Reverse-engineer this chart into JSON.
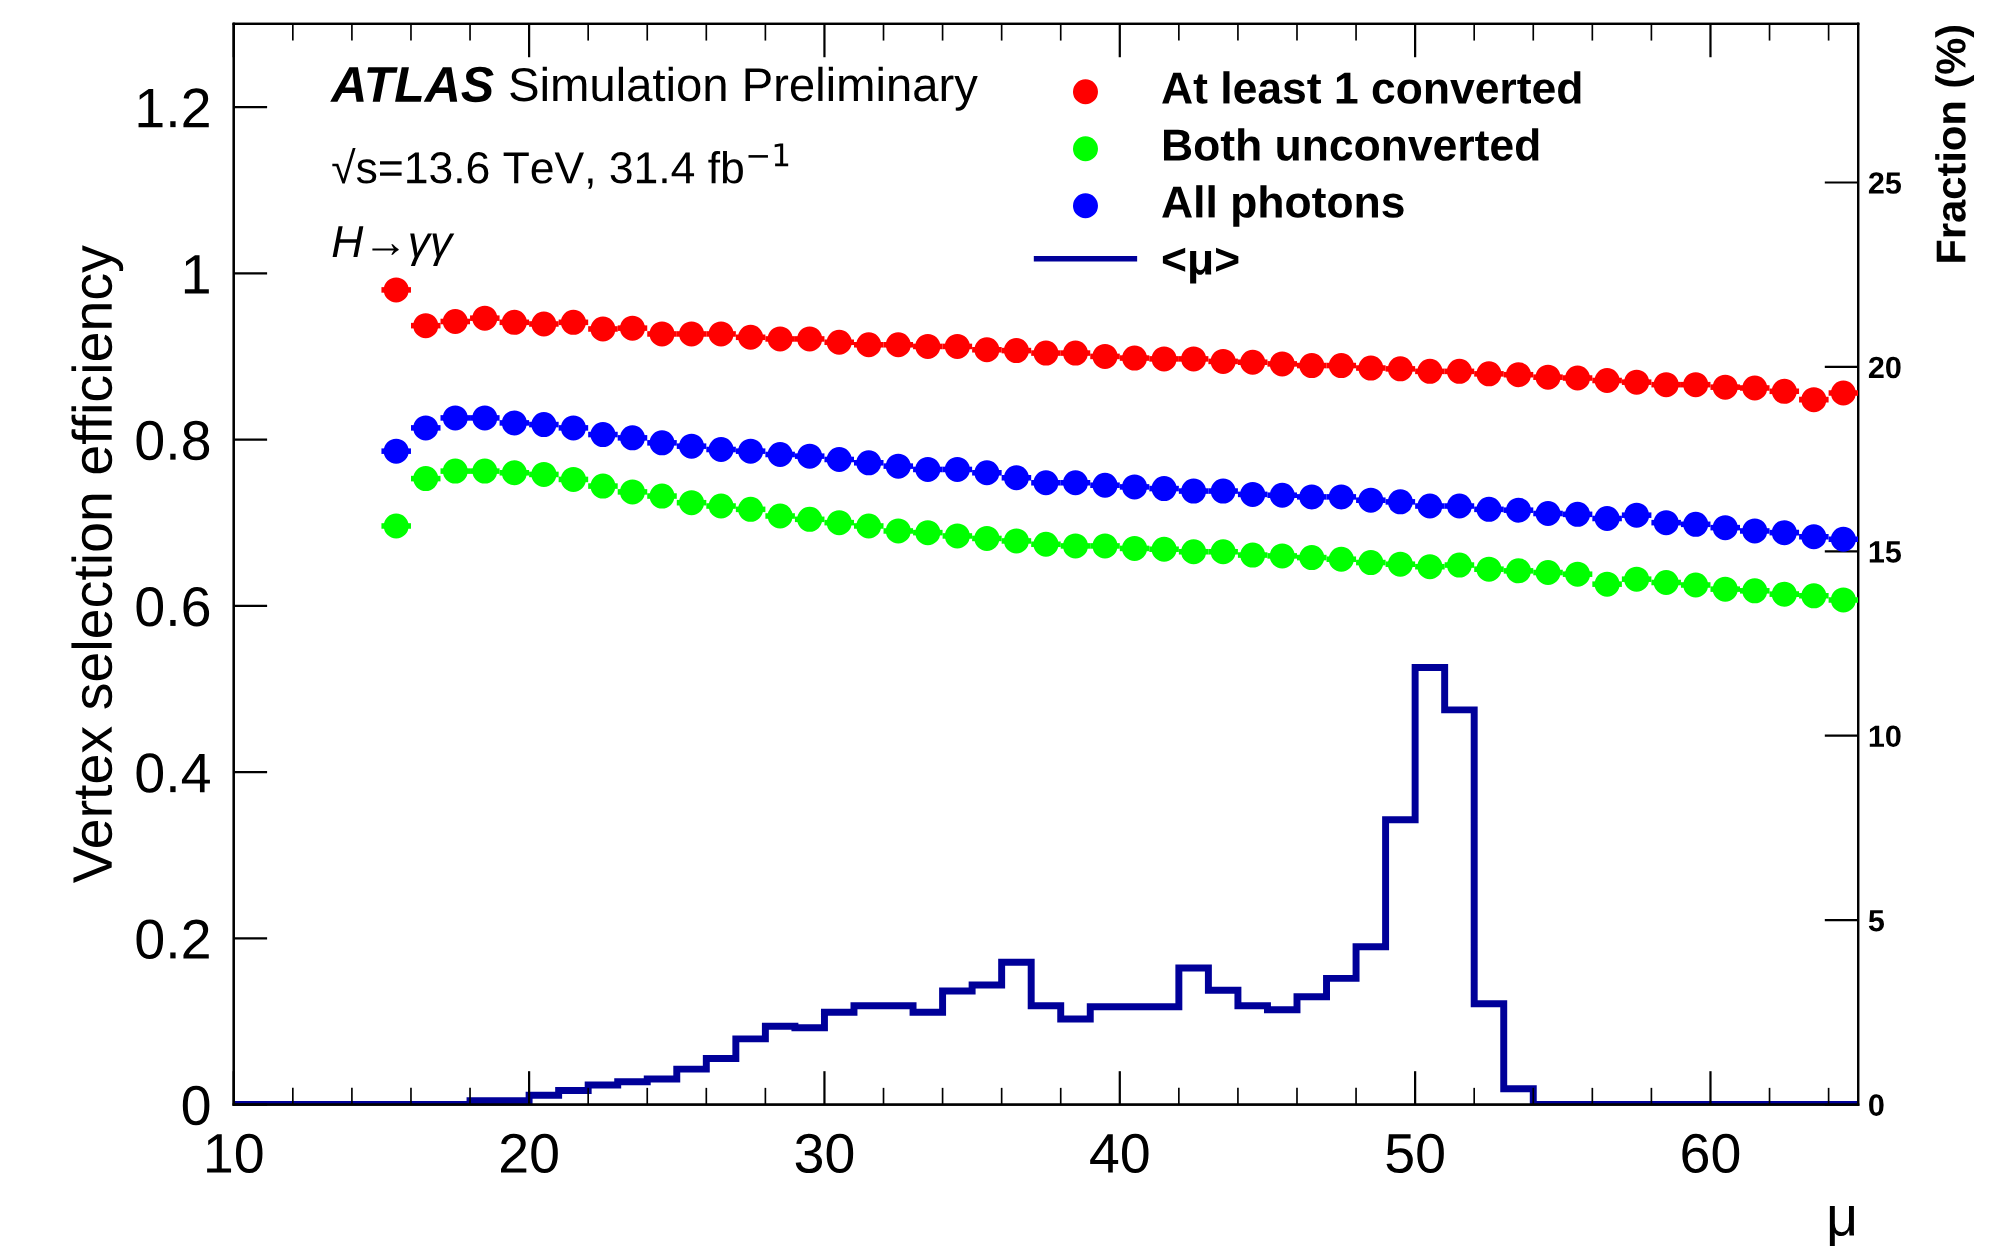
{
  "chart_data": {
    "type": "scatter",
    "xlabel": "μ",
    "ylabel": "Vertex selection efficiency",
    "y2label": "Fraction (%)",
    "annotations": [
      "ATLAS Simulation Preliminary",
      "√s=13.6 TeV, 31.4 fb$^{−1}$",
      "H→γγ"
    ],
    "xlim": [
      10,
      65
    ],
    "xticks": [
      10,
      20,
      30,
      40,
      50,
      60
    ],
    "ylim": [
      0,
      1.3
    ],
    "yticks": [
      0,
      0.2,
      0.4,
      0.6,
      0.8,
      1,
      1.2
    ],
    "y2lim": [
      0,
      29.3
    ],
    "y2ticks": [
      0,
      5,
      10,
      15,
      20,
      25
    ],
    "x": [
      15.5,
      16.5,
      17.5,
      18.5,
      19.5,
      20.5,
      21.5,
      22.5,
      23.5,
      24.5,
      25.5,
      26.5,
      27.5,
      28.5,
      29.5,
      30.5,
      31.5,
      32.5,
      33.5,
      34.5,
      35.5,
      36.5,
      37.5,
      38.5,
      39.5,
      40.5,
      41.5,
      42.5,
      43.5,
      44.5,
      45.5,
      46.5,
      47.5,
      48.5,
      49.5,
      50.5,
      51.5,
      52.5,
      53.5,
      54.5,
      55.5,
      56.5,
      57.5,
      58.5,
      59.5,
      60.5,
      61.5,
      62.5,
      63.5,
      64.5
    ],
    "marker": "circle",
    "legend": "top right",
    "grid": false,
    "series": [
      {
        "name": "At least 1 converted",
        "color": "#ff0000",
        "values": [
          0.98,
          0.937,
          0.942,
          0.946,
          0.941,
          0.939,
          0.941,
          0.933,
          0.934,
          0.927,
          0.927,
          0.927,
          0.923,
          0.921,
          0.921,
          0.917,
          0.914,
          0.914,
          0.912,
          0.912,
          0.908,
          0.907,
          0.904,
          0.904,
          0.9,
          0.898,
          0.897,
          0.897,
          0.894,
          0.893,
          0.891,
          0.889,
          0.889,
          0.886,
          0.885,
          0.882,
          0.882,
          0.879,
          0.878,
          0.875,
          0.874,
          0.871,
          0.869,
          0.866,
          0.866,
          0.863,
          0.862,
          0.858,
          0.848,
          0.856
        ],
        "xerrors": [
          0.5,
          0.5,
          0.5,
          0.5,
          0.5,
          0.5,
          0.5,
          0.5,
          0.5,
          0.5,
          0.5,
          0.5,
          0.5,
          0.5,
          0.5,
          0.5,
          0.5,
          0.5,
          0.5,
          0.5,
          0.5,
          0.5,
          0.5,
          0.5,
          0.5,
          0.5,
          0.5,
          0.5,
          0.5,
          0.5,
          0.5,
          0.5,
          0.5,
          0.5,
          0.5,
          0.5,
          0.5,
          0.5,
          0.5,
          0.5,
          0.5,
          0.5,
          0.5,
          0.5,
          0.5,
          0.5,
          0.5,
          0.5,
          0.5,
          0.5
        ]
      },
      {
        "name": "Both unconverted",
        "color": "#00ff00",
        "values": [
          0.696,
          0.753,
          0.762,
          0.762,
          0.76,
          0.758,
          0.752,
          0.744,
          0.737,
          0.732,
          0.724,
          0.72,
          0.716,
          0.708,
          0.704,
          0.7,
          0.696,
          0.69,
          0.688,
          0.684,
          0.681,
          0.678,
          0.674,
          0.672,
          0.672,
          0.669,
          0.668,
          0.665,
          0.665,
          0.661,
          0.66,
          0.658,
          0.656,
          0.652,
          0.65,
          0.647,
          0.649,
          0.644,
          0.642,
          0.64,
          0.638,
          0.626,
          0.632,
          0.628,
          0.625,
          0.62,
          0.618,
          0.614,
          0.612,
          0.607
        ],
        "xerrors": [
          0.5,
          0.5,
          0.5,
          0.5,
          0.5,
          0.5,
          0.5,
          0.5,
          0.5,
          0.5,
          0.5,
          0.5,
          0.5,
          0.5,
          0.5,
          0.5,
          0.5,
          0.5,
          0.5,
          0.5,
          0.5,
          0.5,
          0.5,
          0.5,
          0.5,
          0.5,
          0.5,
          0.5,
          0.5,
          0.5,
          0.5,
          0.5,
          0.5,
          0.5,
          0.5,
          0.5,
          0.5,
          0.5,
          0.5,
          0.5,
          0.5,
          0.5,
          0.5,
          0.5,
          0.5,
          0.5,
          0.5,
          0.5,
          0.5,
          0.5
        ]
      },
      {
        "name": "All photons",
        "color": "#0000ff",
        "values": [
          0.786,
          0.814,
          0.826,
          0.826,
          0.82,
          0.818,
          0.814,
          0.806,
          0.802,
          0.796,
          0.792,
          0.788,
          0.786,
          0.782,
          0.78,
          0.776,
          0.772,
          0.768,
          0.764,
          0.764,
          0.76,
          0.754,
          0.748,
          0.748,
          0.745,
          0.743,
          0.741,
          0.738,
          0.738,
          0.734,
          0.733,
          0.731,
          0.731,
          0.727,
          0.725,
          0.72,
          0.72,
          0.716,
          0.715,
          0.711,
          0.71,
          0.705,
          0.709,
          0.7,
          0.698,
          0.694,
          0.69,
          0.688,
          0.683,
          0.68
        ],
        "xerrors": [
          0.5,
          0.5,
          0.5,
          0.5,
          0.5,
          0.5,
          0.5,
          0.5,
          0.5,
          0.5,
          0.5,
          0.5,
          0.5,
          0.5,
          0.5,
          0.5,
          0.5,
          0.5,
          0.5,
          0.5,
          0.5,
          0.5,
          0.5,
          0.5,
          0.5,
          0.5,
          0.5,
          0.5,
          0.5,
          0.5,
          0.5,
          0.5,
          0.5,
          0.5,
          0.5,
          0.5,
          0.5,
          0.5,
          0.5,
          0.5,
          0.5,
          0.5,
          0.5,
          0.5,
          0.5,
          0.5,
          0.5,
          0.5,
          0.5,
          0.5
        ]
      },
      {
        "name": "<μ>",
        "color": "#000099",
        "type": "histogram",
        "axis": "y2",
        "bins": [
          10,
          11,
          12,
          13,
          14,
          15,
          16,
          17,
          18,
          19,
          20,
          21,
          22,
          23,
          24,
          25,
          26,
          27,
          28,
          29,
          30,
          31,
          32,
          33,
          34,
          35,
          36,
          37,
          38,
          39,
          40,
          41,
          42,
          43,
          44,
          45,
          46,
          47,
          48,
          49,
          50,
          51,
          52,
          53,
          54,
          55,
          56,
          57,
          58,
          59,
          60,
          61,
          62,
          63,
          64,
          65
        ],
        "values": [
          0,
          0,
          0,
          0,
          0,
          0,
          0,
          0,
          0.1,
          0.1,
          0.25,
          0.38,
          0.53,
          0.62,
          0.69,
          0.96,
          1.25,
          1.78,
          2.12,
          2.08,
          2.5,
          2.68,
          2.68,
          2.5,
          3.08,
          3.24,
          3.86,
          2.68,
          2.32,
          2.65,
          2.65,
          2.65,
          3.7,
          3.1,
          2.68,
          2.57,
          2.92,
          3.42,
          4.28,
          7.72,
          11.85,
          10.7,
          2.73,
          0.43,
          0,
          0,
          0,
          0,
          0,
          0,
          0,
          0,
          0,
          0,
          0
        ]
      }
    ]
  }
}
